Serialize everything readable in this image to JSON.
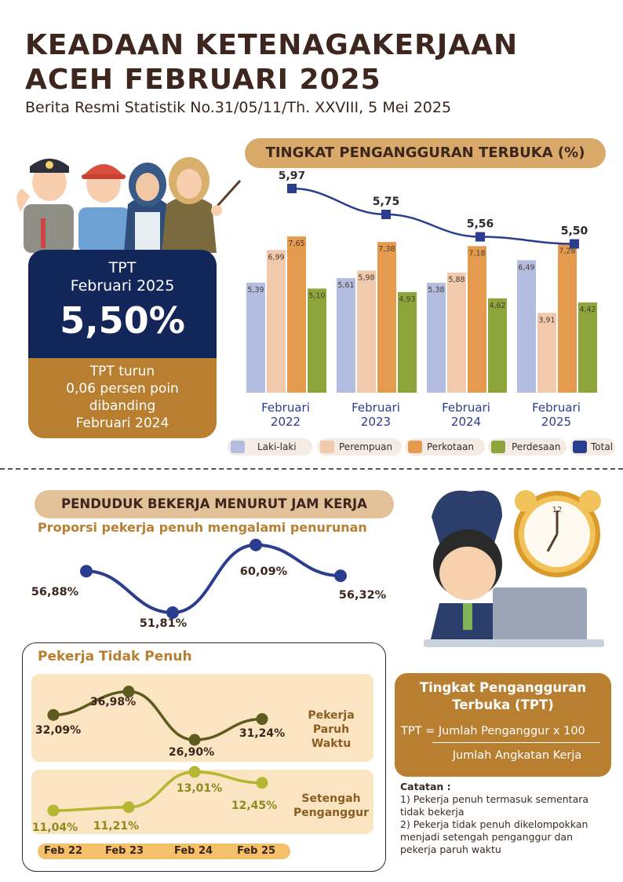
{
  "header": {
    "title_line1": "KEADAAN KETENAGAKERJAAN",
    "title_line2": "ACEH FEBRUARI 2025",
    "subtitle": "Berita Resmi Statistik No.31/05/11/Th. XXVIII, 5 Mei 2025"
  },
  "tpt_card": {
    "label_line1": "TPT",
    "label_line2": "Februari 2025",
    "value": "5,50%",
    "desc_line1": "TPT turun",
    "desc_line2": "0,06 persen poin",
    "desc_line3": "dibanding",
    "desc_line4": "Februari 2024"
  },
  "colors": {
    "laki_laki": "#b3bde0",
    "perempuan": "#f1c9ac",
    "perkotaan": "#e59b4e",
    "perdesaan": "#8da53a",
    "total": "#2a3d8f",
    "dark_brown": "#3c261d",
    "gold": "#b97f31",
    "tan": "#d9a96a",
    "olive": "#5e5b1e",
    "lime": "#b5b631",
    "navy": "#2a3d8f"
  },
  "chart_data": [
    {
      "type": "bar",
      "title": "TINGKAT PENGANGGURAN TERBUKA (%)",
      "categories": [
        {
          "line1": "Februari",
          "line2": "2022"
        },
        {
          "line1": "Februari",
          "line2": "2023"
        },
        {
          "line1": "Februari",
          "line2": "2024"
        },
        {
          "line1": "Februari",
          "line2": "2025"
        }
      ],
      "series": [
        {
          "name": "Laki-laki",
          "values": [
            5.39,
            5.61,
            5.38,
            6.49
          ],
          "labels": [
            "5,39",
            "5,61",
            "5,38",
            "6,49"
          ]
        },
        {
          "name": "Perempuan",
          "values": [
            6.99,
            5.98,
            5.88,
            3.91
          ],
          "labels": [
            "6,99",
            "5,98",
            "5,88",
            "3,91"
          ]
        },
        {
          "name": "Perkotaan",
          "values": [
            7.65,
            7.38,
            7.18,
            7.28
          ],
          "labels": [
            "7,65",
            "7,38",
            "7,18",
            "7,28"
          ]
        },
        {
          "name": "Perdesaan",
          "values": [
            5.1,
            4.93,
            4.62,
            4.42
          ],
          "labels": [
            "5,10",
            "4,93",
            "4,62",
            "4,42"
          ]
        }
      ],
      "line_series": {
        "name": "Total",
        "values": [
          5.97,
          5.75,
          5.56,
          5.5
        ],
        "labels": [
          "5,97",
          "5,75",
          "5,56",
          "5,50"
        ]
      },
      "legend": [
        "Laki-laki",
        "Perempuan",
        "Perkotaan",
        "Perdesaan",
        "Total"
      ],
      "legend_position": "bottom"
    },
    {
      "type": "line",
      "title": "PENDUDUK BEKERJA MENURUT JAM KERJA",
      "subtitle": "Proporsi pekerja penuh mengalami penurunan",
      "x": [
        "Feb 22",
        "Feb 23",
        "Feb 24",
        "Feb 25"
      ],
      "series": [
        {
          "name": "",
          "values": [
            56.88,
            51.81,
            60.09,
            56.32
          ],
          "labels": [
            "56,88%",
            "51,81%",
            "60,09%",
            "56,32%"
          ]
        }
      ]
    },
    {
      "type": "line",
      "title": "Pekerja Tidak Penuh",
      "x": [
        "Feb 22",
        "Feb 23",
        "Feb 24",
        "Feb 25"
      ],
      "series": [
        {
          "name": "Pekerja Paruh Waktu",
          "values": [
            32.09,
            36.98,
            26.9,
            31.24
          ],
          "labels": [
            "32,09%",
            "36,98%",
            "26,90%",
            "31,24%"
          ]
        },
        {
          "name": "Setengah Penganggur",
          "values": [
            11.04,
            11.21,
            13.01,
            12.45
          ],
          "labels": [
            "11,04%",
            "11,21%",
            "13,01%",
            "12,45%"
          ]
        }
      ]
    }
  ],
  "ptp_labels": {
    "paruh_line1": "Pekerja",
    "paruh_line2": "Paruh",
    "paruh_line3": "Waktu",
    "setengah_line1": "Setengah",
    "setengah_line2": "Penganggur"
  },
  "formula": {
    "title_line1": "Tingkat Pengangguran",
    "title_line2": "Terbuka (TPT)",
    "numerator": "TPT = Jumlah Penganggur x 100",
    "denominator": "Jumlah Angkatan Kerja"
  },
  "notes": {
    "heading": "Catatan :",
    "item1": "1)  Pekerja penuh termasuk sementara tidak bekerja",
    "item2": "2)  Pekerja tidak penuh dikelompokkan menjadi setengah penganggur dan pekerja paruh waktu"
  },
  "icons": [
    "police-person-icon",
    "worker-person-icon",
    "nurse-person-icon",
    "teacher-person-icon",
    "stretching-office-worker-icon",
    "alarm-clock-icon",
    "laptop-icon"
  ]
}
